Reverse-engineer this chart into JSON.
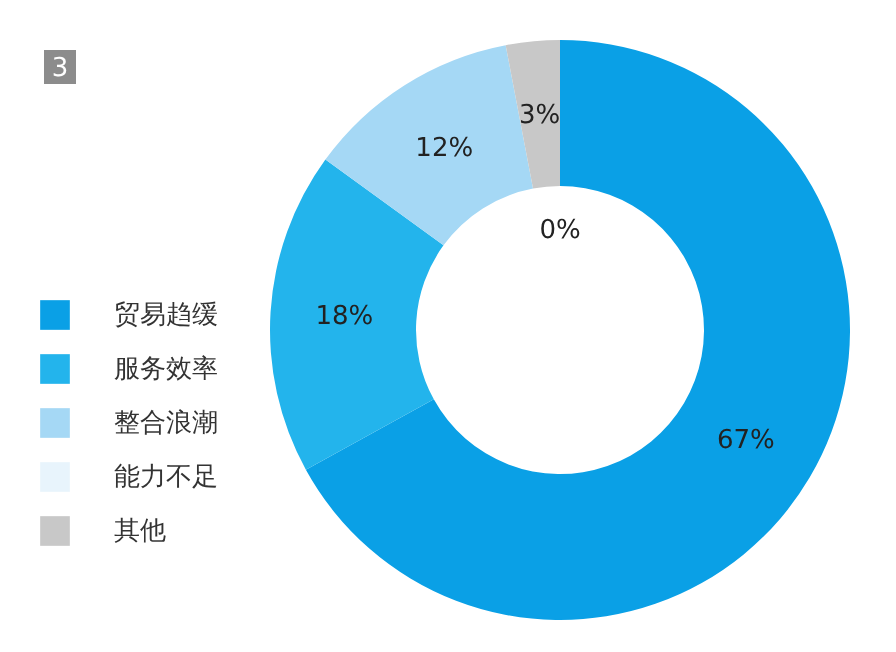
{
  "chart_data": {
    "type": "donut",
    "title": "3",
    "categories": [
      "贸易趋缓",
      "服务效率",
      "整合浪潮",
      "能力不足",
      "其他"
    ],
    "values": [
      67,
      18,
      12,
      0,
      3
    ],
    "value_labels": [
      "67%",
      "18%",
      "12%",
      "0%",
      "3%"
    ],
    "colors": [
      "#0aa0e6",
      "#23b4ec",
      "#a5d8f5",
      "#e8f4fc",
      "#c8c8c8"
    ],
    "legend": "left"
  }
}
